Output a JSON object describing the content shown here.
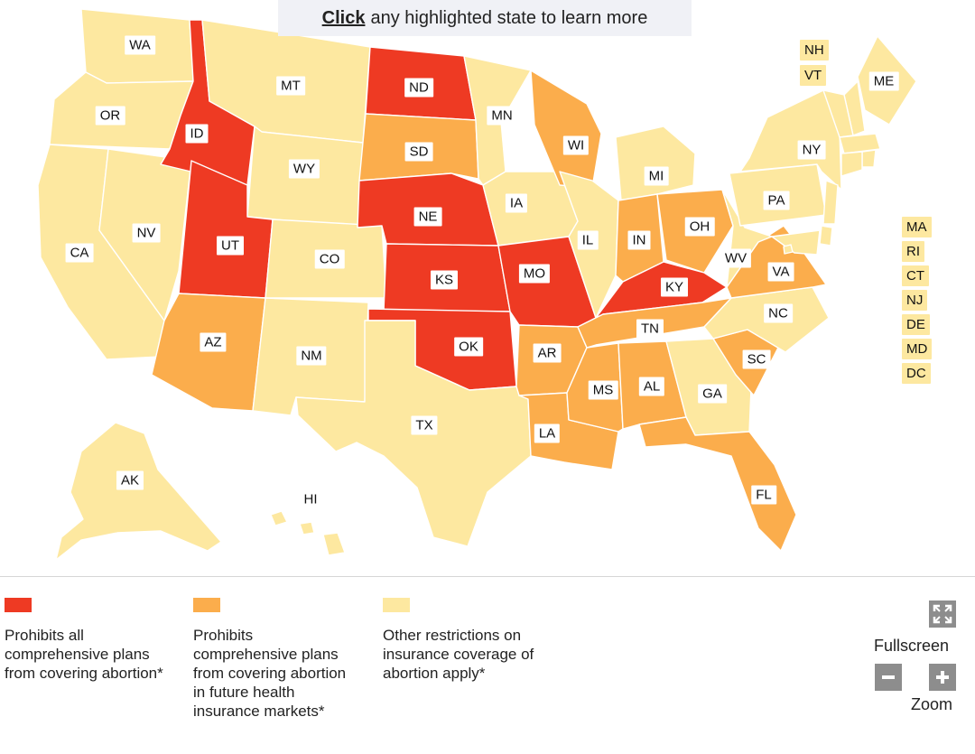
{
  "banner": {
    "click_word": "Click",
    "rest": "any highlighted state to learn more"
  },
  "colors": {
    "red": "#ee3a23",
    "orange": "#fbad4c",
    "yellow": "#fde8a0"
  },
  "states": {
    "WA": "yellow",
    "OR": "yellow",
    "CA": "yellow",
    "NV": "yellow",
    "ID": "red",
    "MT": "yellow",
    "WY": "yellow",
    "UT": "red",
    "AZ": "orange",
    "CO": "yellow",
    "NM": "yellow",
    "ND": "red",
    "SD": "orange",
    "NE": "red",
    "KS": "red",
    "OK": "red",
    "TX": "yellow",
    "MN": "yellow",
    "IA": "yellow",
    "MO": "red",
    "AR": "orange",
    "LA": "orange",
    "WI": "orange",
    "IL": "yellow",
    "MI": "yellow",
    "IN": "orange",
    "OH": "orange",
    "KY": "red",
    "TN": "orange",
    "MS": "orange",
    "AL": "orange",
    "GA": "yellow",
    "FL": "orange",
    "SC": "orange",
    "NC": "yellow",
    "VA": "orange",
    "WV": "yellow",
    "PA": "yellow",
    "NY": "yellow",
    "ME": "yellow",
    "NH": "yellow",
    "VT": "yellow",
    "MA": "yellow",
    "RI": "yellow",
    "CT": "yellow",
    "NJ": "yellow",
    "DE": "yellow",
    "MD": "yellow",
    "DC": "yellow",
    "AK": "yellow",
    "HI": "yellow"
  },
  "legend": [
    {
      "color": "red",
      "text": "Prohibits all comprehensive plans from covering abortion*"
    },
    {
      "color": "orange",
      "text": "Prohibits comprehensive plans from covering abortion in future health insurance markets*"
    },
    {
      "color": "yellow",
      "text": "Other restrictions on insurance coverage of abortion apply*"
    }
  ],
  "controls": {
    "fullscreen_label": "Fullscreen",
    "zoom_label": "Zoom"
  }
}
